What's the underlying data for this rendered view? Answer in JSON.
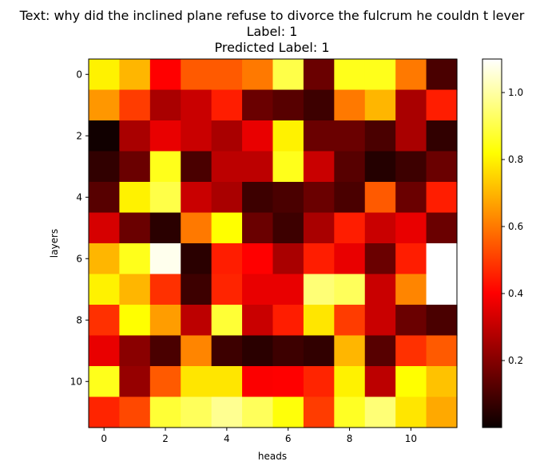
{
  "chart_data": {
    "type": "heatmap",
    "title_lines": [
      "Text: why did the inclined plane refuse to divorce the fulcrum he couldn t lever",
      "Label: 1",
      "Predicted Label: 1"
    ],
    "xlabel": "heads",
    "ylabel": "layers",
    "x_ticks": [
      "0",
      "2",
      "4",
      "6",
      "8",
      "10"
    ],
    "y_ticks": [
      "0",
      "2",
      "4",
      "6",
      "8",
      "10"
    ],
    "colormap": "hot",
    "colorbar": {
      "range": [
        0.0,
        1.1
      ],
      "ticks": [
        "0.2",
        "0.4",
        "0.6",
        "0.8",
        "1.0"
      ]
    },
    "values": [
      [
        0.8,
        0.7,
        0.4,
        0.55,
        0.55,
        0.6,
        0.9,
        0.15,
        0.85,
        0.85,
        0.6,
        0.1
      ],
      [
        0.65,
        0.5,
        0.25,
        0.3,
        0.45,
        0.15,
        0.12,
        0.08,
        0.6,
        0.7,
        0.25,
        0.45
      ],
      [
        0.01,
        0.25,
        0.35,
        0.3,
        0.25,
        0.35,
        0.8,
        0.15,
        0.15,
        0.1,
        0.25,
        0.06
      ],
      [
        0.06,
        0.15,
        0.85,
        0.1,
        0.28,
        0.28,
        0.85,
        0.3,
        0.12,
        0.04,
        0.08,
        0.15
      ],
      [
        0.12,
        0.8,
        0.9,
        0.3,
        0.25,
        0.08,
        0.1,
        0.15,
        0.1,
        0.55,
        0.15,
        0.45
      ],
      [
        0.32,
        0.15,
        0.05,
        0.6,
        0.82,
        0.15,
        0.08,
        0.25,
        0.45,
        0.3,
        0.35,
        0.15
      ],
      [
        0.7,
        0.85,
        1.08,
        0.05,
        0.45,
        0.4,
        0.25,
        0.45,
        0.35,
        0.15,
        0.45,
        1.1
      ],
      [
        0.8,
        0.7,
        0.48,
        0.08,
        0.46,
        0.35,
        0.35,
        0.95,
        0.92,
        0.3,
        0.62,
        1.1
      ],
      [
        0.48,
        0.82,
        0.66,
        0.28,
        0.88,
        0.3,
        0.45,
        0.78,
        0.5,
        0.3,
        0.15,
        0.1
      ],
      [
        0.35,
        0.2,
        0.1,
        0.62,
        0.08,
        0.05,
        0.08,
        0.06,
        0.7,
        0.12,
        0.48,
        0.55
      ],
      [
        0.85,
        0.22,
        0.55,
        0.78,
        0.78,
        0.38,
        0.4,
        0.46,
        0.8,
        0.28,
        0.82,
        0.72
      ],
      [
        0.46,
        0.52,
        0.88,
        0.92,
        0.98,
        0.92,
        0.83,
        0.5,
        0.86,
        0.95,
        0.78,
        0.68
      ]
    ]
  }
}
